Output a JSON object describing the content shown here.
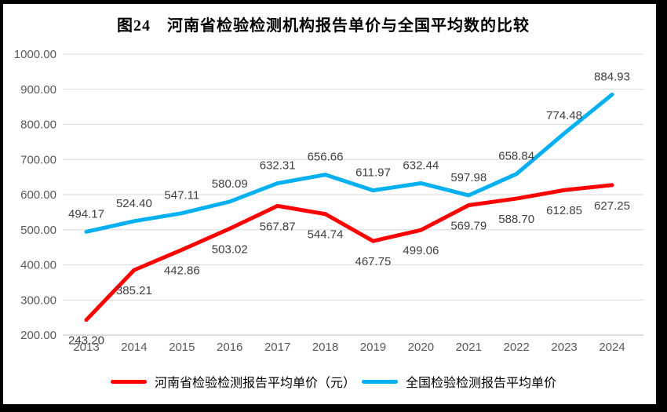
{
  "chart_data": {
    "type": "line",
    "title": "图24　河南省检验检测机构报告单价与全国平均数的比较",
    "x": [
      "2013",
      "2014",
      "2015",
      "2016",
      "2017",
      "2018",
      "2019",
      "2020",
      "2021",
      "2022",
      "2023",
      "2024"
    ],
    "series": [
      {
        "name": "河南省检验检测报告平均单价（元）",
        "color": "#FF0000",
        "label_position": "below",
        "values": [
          243.2,
          385.21,
          442.86,
          503.02,
          567.87,
          544.74,
          467.75,
          499.06,
          569.79,
          588.7,
          612.85,
          627.25
        ]
      },
      {
        "name": "全国检验检测报告平均单价",
        "color": "#00B0F0",
        "label_position": "above",
        "values": [
          494.17,
          524.4,
          547.11,
          580.09,
          632.31,
          656.66,
          611.97,
          632.44,
          597.98,
          658.84,
          774.48,
          884.93
        ]
      }
    ],
    "ylim": [
      200,
      1000
    ],
    "ytick_step": 100,
    "ytick_decimals": 2,
    "grid": true,
    "legend_position": "bottom"
  },
  "colors": {
    "henan_line": "#FF0000",
    "national_line": "#00B0F0",
    "gridline": "#D9D9D9",
    "axis_line": "#BFBFBF",
    "data_label": "#404040",
    "tick_label": "#595959",
    "title_text": "#000000",
    "frame_border": "#000000"
  }
}
